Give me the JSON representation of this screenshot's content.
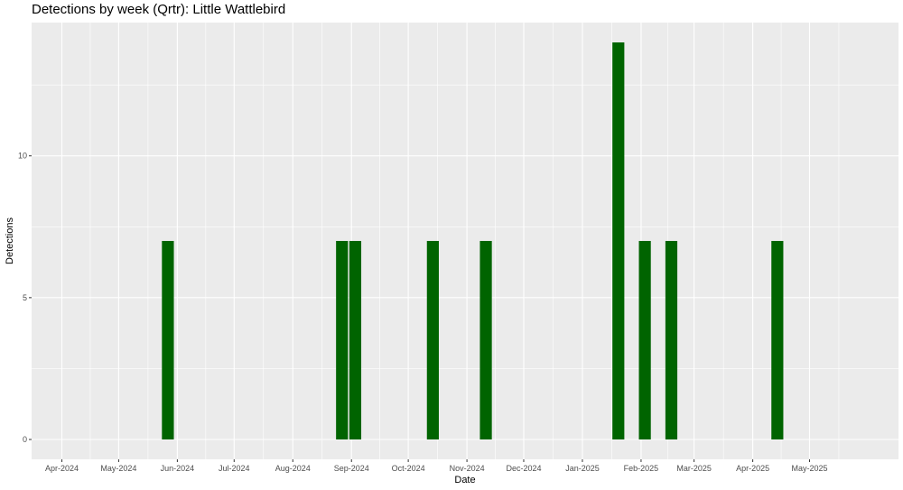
{
  "chart_data": {
    "type": "bar",
    "title": "Detections by week (Qrtr): Little Wattlebird",
    "xlabel": "Date",
    "ylabel": "Detections",
    "x_axis": {
      "type": "date",
      "range": [
        "2024-03-16",
        "2025-06-17"
      ],
      "ticks": [
        {
          "date": "2024-04-01",
          "label": "Apr-2024"
        },
        {
          "date": "2024-05-01",
          "label": "May-2024"
        },
        {
          "date": "2024-06-01",
          "label": "Jun-2024"
        },
        {
          "date": "2024-07-01",
          "label": "Jul-2024"
        },
        {
          "date": "2024-08-01",
          "label": "Aug-2024"
        },
        {
          "date": "2024-09-01",
          "label": "Sep-2024"
        },
        {
          "date": "2024-10-01",
          "label": "Oct-2024"
        },
        {
          "date": "2024-11-01",
          "label": "Nov-2024"
        },
        {
          "date": "2024-12-01",
          "label": "Dec-2024"
        },
        {
          "date": "2025-01-01",
          "label": "Jan-2025"
        },
        {
          "date": "2025-02-01",
          "label": "Feb-2025"
        },
        {
          "date": "2025-03-01",
          "label": "Mar-2025"
        },
        {
          "date": "2025-04-01",
          "label": "Apr-2025"
        },
        {
          "date": "2025-05-01",
          "label": "May-2025"
        }
      ]
    },
    "y_axis": {
      "range": [
        -0.7,
        14.7
      ],
      "ticks": [
        0,
        5,
        10
      ]
    },
    "bar_width_days": 6.3,
    "bars": [
      {
        "date": "2024-05-27",
        "value": 7
      },
      {
        "date": "2024-08-27",
        "value": 7
      },
      {
        "date": "2024-09-03",
        "value": 7
      },
      {
        "date": "2024-10-14",
        "value": 7
      },
      {
        "date": "2024-11-11",
        "value": 7
      },
      {
        "date": "2025-01-20",
        "value": 14
      },
      {
        "date": "2025-02-03",
        "value": 7
      },
      {
        "date": "2025-02-17",
        "value": 7
      },
      {
        "date": "2025-04-14",
        "value": 7
      }
    ],
    "grid": true,
    "panel_background": "#ebebeb",
    "grid_color": "#ffffff",
    "bar_color": "#006400"
  }
}
